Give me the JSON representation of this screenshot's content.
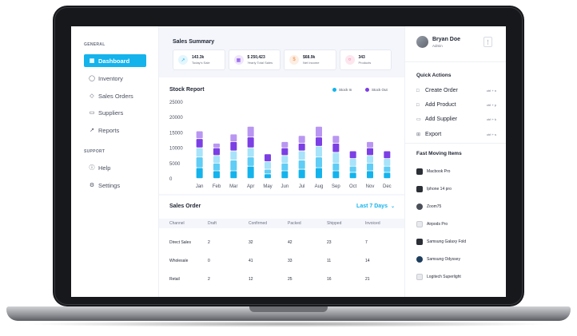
{
  "sidebar": {
    "section_general": "GENERAL",
    "section_support": "SUPPORT",
    "items": [
      {
        "label": "Dashboard",
        "icon": "grid-icon",
        "active": true
      },
      {
        "label": "Inventory",
        "icon": "box-icon"
      },
      {
        "label": "Sales Orders",
        "icon": "tag-icon"
      },
      {
        "label": "Suppliers",
        "icon": "truck-icon"
      },
      {
        "label": "Reports",
        "icon": "chart-line-icon"
      }
    ],
    "support_items": [
      {
        "label": "Help",
        "icon": "info-icon"
      },
      {
        "label": "Settings",
        "icon": "gear-icon"
      }
    ]
  },
  "summary": {
    "title": "Sales Summary",
    "cards": [
      {
        "value": "143.3k",
        "label": "Today's Sale",
        "icon": "chart-icon",
        "color": "#14b3ec",
        "bg": "#e3f6fd"
      },
      {
        "value": "$ 250,423",
        "label": "Yearly Total Sales",
        "icon": "calendar-icon",
        "color": "#7b3fe4",
        "bg": "#efe6fc"
      },
      {
        "value": "$68.9k",
        "label": "Net Income",
        "icon": "dollar-icon",
        "color": "#f08a3c",
        "bg": "#fdeee3"
      },
      {
        "value": "343",
        "label": "Products",
        "icon": "bag-icon",
        "color": "#f0457a",
        "bg": "#fde6ee"
      }
    ]
  },
  "stock_report": {
    "title": "Stock Report",
    "legend_in": "Stock In",
    "legend_out": "Stock Out"
  },
  "chart_data": {
    "type": "bar",
    "stacked": true,
    "categories": [
      "Jan",
      "Feb",
      "Mar",
      "Apr",
      "May",
      "Jun",
      "Jul",
      "Aug",
      "Sep",
      "Oct",
      "Nov",
      "Dec"
    ],
    "yticks": [
      0,
      5000,
      10000,
      15000,
      20000,
      25000
    ],
    "ylim": [
      0,
      25000
    ],
    "segments": [
      {
        "values": [
          3500,
          2500,
          2500,
          4000,
          1500,
          2500,
          3000,
          3500,
          2500,
          2000,
          2500,
          2000
        ],
        "color": "#14b3ec"
      },
      {
        "values": [
          3500,
          2500,
          3500,
          3000,
          1500,
          2500,
          3000,
          3500,
          2500,
          2000,
          2500,
          2000
        ],
        "color": "#5fcdf5"
      },
      {
        "values": [
          3000,
          2500,
          3000,
          3000,
          2500,
          2500,
          3000,
          3500,
          3500,
          2500,
          2500,
          2500
        ],
        "color": "#a7e3fa"
      },
      {
        "values": [
          3000,
          2500,
          3000,
          3500,
          2500,
          2500,
          2500,
          3000,
          3000,
          2500,
          2500,
          2500
        ],
        "color": "#7b3fe4"
      },
      {
        "values": [
          2500,
          1500,
          2500,
          3500,
          0,
          2000,
          2500,
          3500,
          2500,
          0,
          2000,
          0
        ],
        "color": "#b996f2"
      }
    ],
    "legend_placement": "top-right",
    "grid": false
  },
  "sales_order": {
    "title": "Sales Order",
    "range": "Last 7 Days",
    "columns": [
      "Channel",
      "Draft",
      "Confirmed",
      "Packed",
      "Shipped",
      "Invoiced"
    ],
    "rows": [
      [
        "Direct Sales",
        "2",
        "32",
        "42",
        "23",
        "7"
      ],
      [
        "Wholesale",
        "0",
        "41",
        "33",
        "11",
        "14"
      ],
      [
        "Retail",
        "2",
        "12",
        "25",
        "16",
        "21"
      ]
    ]
  },
  "user": {
    "name": "Bryan Doe",
    "role": "Admin"
  },
  "quick_actions": {
    "title": "Quick Actions",
    "items": [
      {
        "label": "Create Order",
        "shortcut": "ctrl + n",
        "icon": "file-icon"
      },
      {
        "label": "Add Product",
        "shortcut": "ctrl + p",
        "icon": "box-add-icon"
      },
      {
        "label": "Add Supplier",
        "shortcut": "ctrl + k",
        "icon": "truck-icon"
      },
      {
        "label": "Export",
        "shortcut": "ctrl + s",
        "icon": "export-icon"
      }
    ]
  },
  "fast_moving": {
    "title": "Fast Moving Items",
    "items": [
      "Macbook Pro",
      "Iphone 14 pro",
      "Zoom75",
      "Airpods Pro",
      "Samsung Galaxy Fold",
      "Samsung Odyssey",
      "Logitech Superlight"
    ]
  }
}
